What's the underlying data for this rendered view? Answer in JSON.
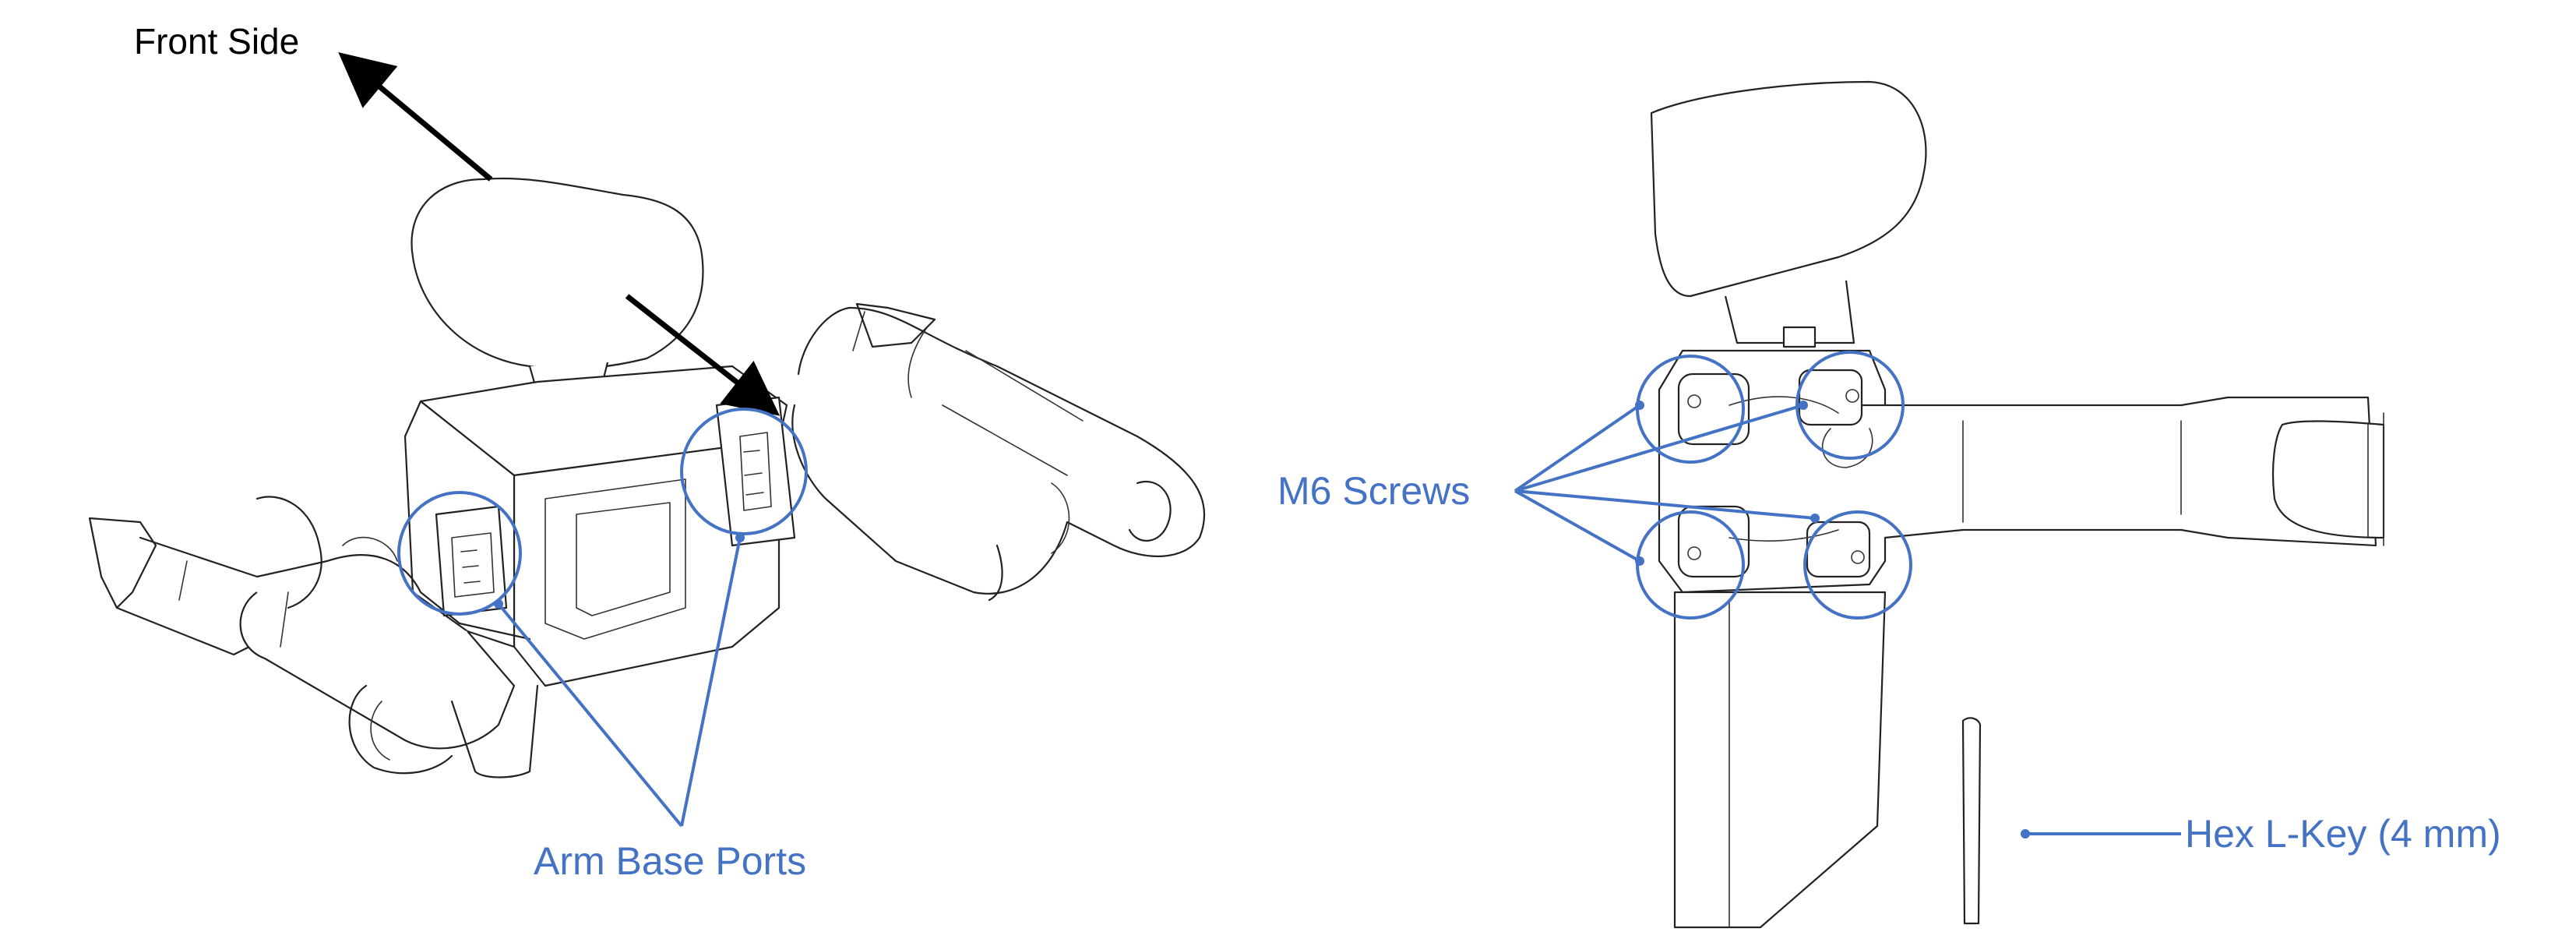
{
  "labels": {
    "front_side": "Front Side",
    "arm_base_ports": "Arm Base Ports",
    "m6_screws": "M6 Screws",
    "hex_key": "Hex L-Key (4 mm)"
  },
  "colors": {
    "annotation": "#4472c4",
    "arrow": "#000000",
    "drawing": "#222222"
  }
}
